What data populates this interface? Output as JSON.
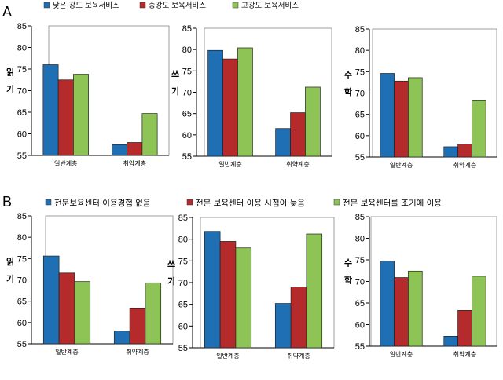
{
  "figure": {
    "panels": [
      {
        "letter": "A",
        "legend": [
          {
            "label": "낮은 강도 보육서비스",
            "color": "#1f6fb5"
          },
          {
            "label": "중강도 보육서비스",
            "color": "#b52a2a"
          },
          {
            "label": "고강도 보육서비스",
            "color": "#8dc455"
          }
        ]
      },
      {
        "letter": "B",
        "legend": [
          {
            "label": "전문보육센터 이용경험 없음",
            "color": "#1f6fb5"
          },
          {
            "label": "전문 보육센터 이용 시점이 늦음",
            "color": "#b52a2a"
          },
          {
            "label": "전문 보육센터를 조기에 이용",
            "color": "#8dc455"
          }
        ]
      }
    ]
  },
  "chart_data": [
    {
      "type": "bar",
      "panel": "A",
      "ylabel": "읽기",
      "ylim": [
        55,
        85
      ],
      "yticks": [
        55,
        60,
        65,
        70,
        75,
        80,
        85
      ],
      "categories": [
        "일반계층",
        "취약계층"
      ],
      "series": [
        {
          "name": "낮은 강도 보육서비스",
          "values": [
            76,
            57.5
          ]
        },
        {
          "name": "중강도 보육서비스",
          "values": [
            72.5,
            58
          ]
        },
        {
          "name": "고강도 보육서비스",
          "values": [
            73.8,
            64.7
          ]
        }
      ]
    },
    {
      "type": "bar",
      "panel": "A",
      "ylabel": "쓰기",
      "ylim": [
        55,
        85
      ],
      "yticks": [
        55,
        60,
        65,
        70,
        75,
        80,
        85
      ],
      "categories": [
        "일반계층",
        "취약계층"
      ],
      "series": [
        {
          "name": "낮은 강도 보육서비스",
          "values": [
            79.8,
            61.5
          ]
        },
        {
          "name": "중강도 보육서비스",
          "values": [
            77.8,
            65.2
          ]
        },
        {
          "name": "고강도 보육서비스",
          "values": [
            80.4,
            71.2
          ]
        }
      ]
    },
    {
      "type": "bar",
      "panel": "A",
      "ylabel": "수학",
      "ylim": [
        55,
        85
      ],
      "yticks": [
        55,
        60,
        65,
        70,
        75,
        80,
        85
      ],
      "categories": [
        "일반계층",
        "취약계층"
      ],
      "series": [
        {
          "name": "낮은 강도 보육서비스",
          "values": [
            74.6,
            57.4
          ]
        },
        {
          "name": "중강도 보육서비스",
          "values": [
            72.8,
            58
          ]
        },
        {
          "name": "고강도 보육서비스",
          "values": [
            73.6,
            68.2
          ]
        }
      ]
    },
    {
      "type": "bar",
      "panel": "B",
      "ylabel": "읽기",
      "ylim": [
        55,
        85
      ],
      "yticks": [
        55,
        60,
        65,
        70,
        75,
        80,
        85
      ],
      "categories": [
        "일반계층",
        "취약계층"
      ],
      "series": [
        {
          "name": "전문보육센터 이용경험 없음",
          "values": [
            75.6,
            58
          ]
        },
        {
          "name": "전문 보육센터 이용 시점이 늦음",
          "values": [
            71.6,
            63.4
          ]
        },
        {
          "name": "전문 보육센터를 조기에 이용",
          "values": [
            69.6,
            69.3
          ]
        }
      ]
    },
    {
      "type": "bar",
      "panel": "B",
      "ylabel": "쓰기",
      "ylim": [
        55,
        85
      ],
      "yticks": [
        55,
        60,
        65,
        70,
        75,
        80,
        85
      ],
      "categories": [
        "일반계층",
        "취약계층"
      ],
      "series": [
        {
          "name": "전문보육센터 이용경험 없음",
          "values": [
            81.8,
            65.2
          ]
        },
        {
          "name": "전문 보육센터 이용 시점이 늦음",
          "values": [
            79.5,
            69
          ]
        },
        {
          "name": "전문 보육센터를 조기에 이용",
          "values": [
            78,
            81.2
          ]
        }
      ]
    },
    {
      "type": "bar",
      "panel": "B",
      "ylabel": "수학",
      "ylim": [
        55,
        85
      ],
      "yticks": [
        55,
        60,
        65,
        70,
        75,
        80,
        85
      ],
      "categories": [
        "일반계층",
        "취약계층"
      ],
      "series": [
        {
          "name": "전문보육센터 이용경험 없음",
          "values": [
            74.7,
            57.3
          ]
        },
        {
          "name": "전문 보육센터 이용 시점이 늦음",
          "values": [
            70.9,
            63.3
          ]
        },
        {
          "name": "전문 보육센터를 조기에 이용",
          "values": [
            72.4,
            71.2
          ]
        }
      ]
    }
  ]
}
